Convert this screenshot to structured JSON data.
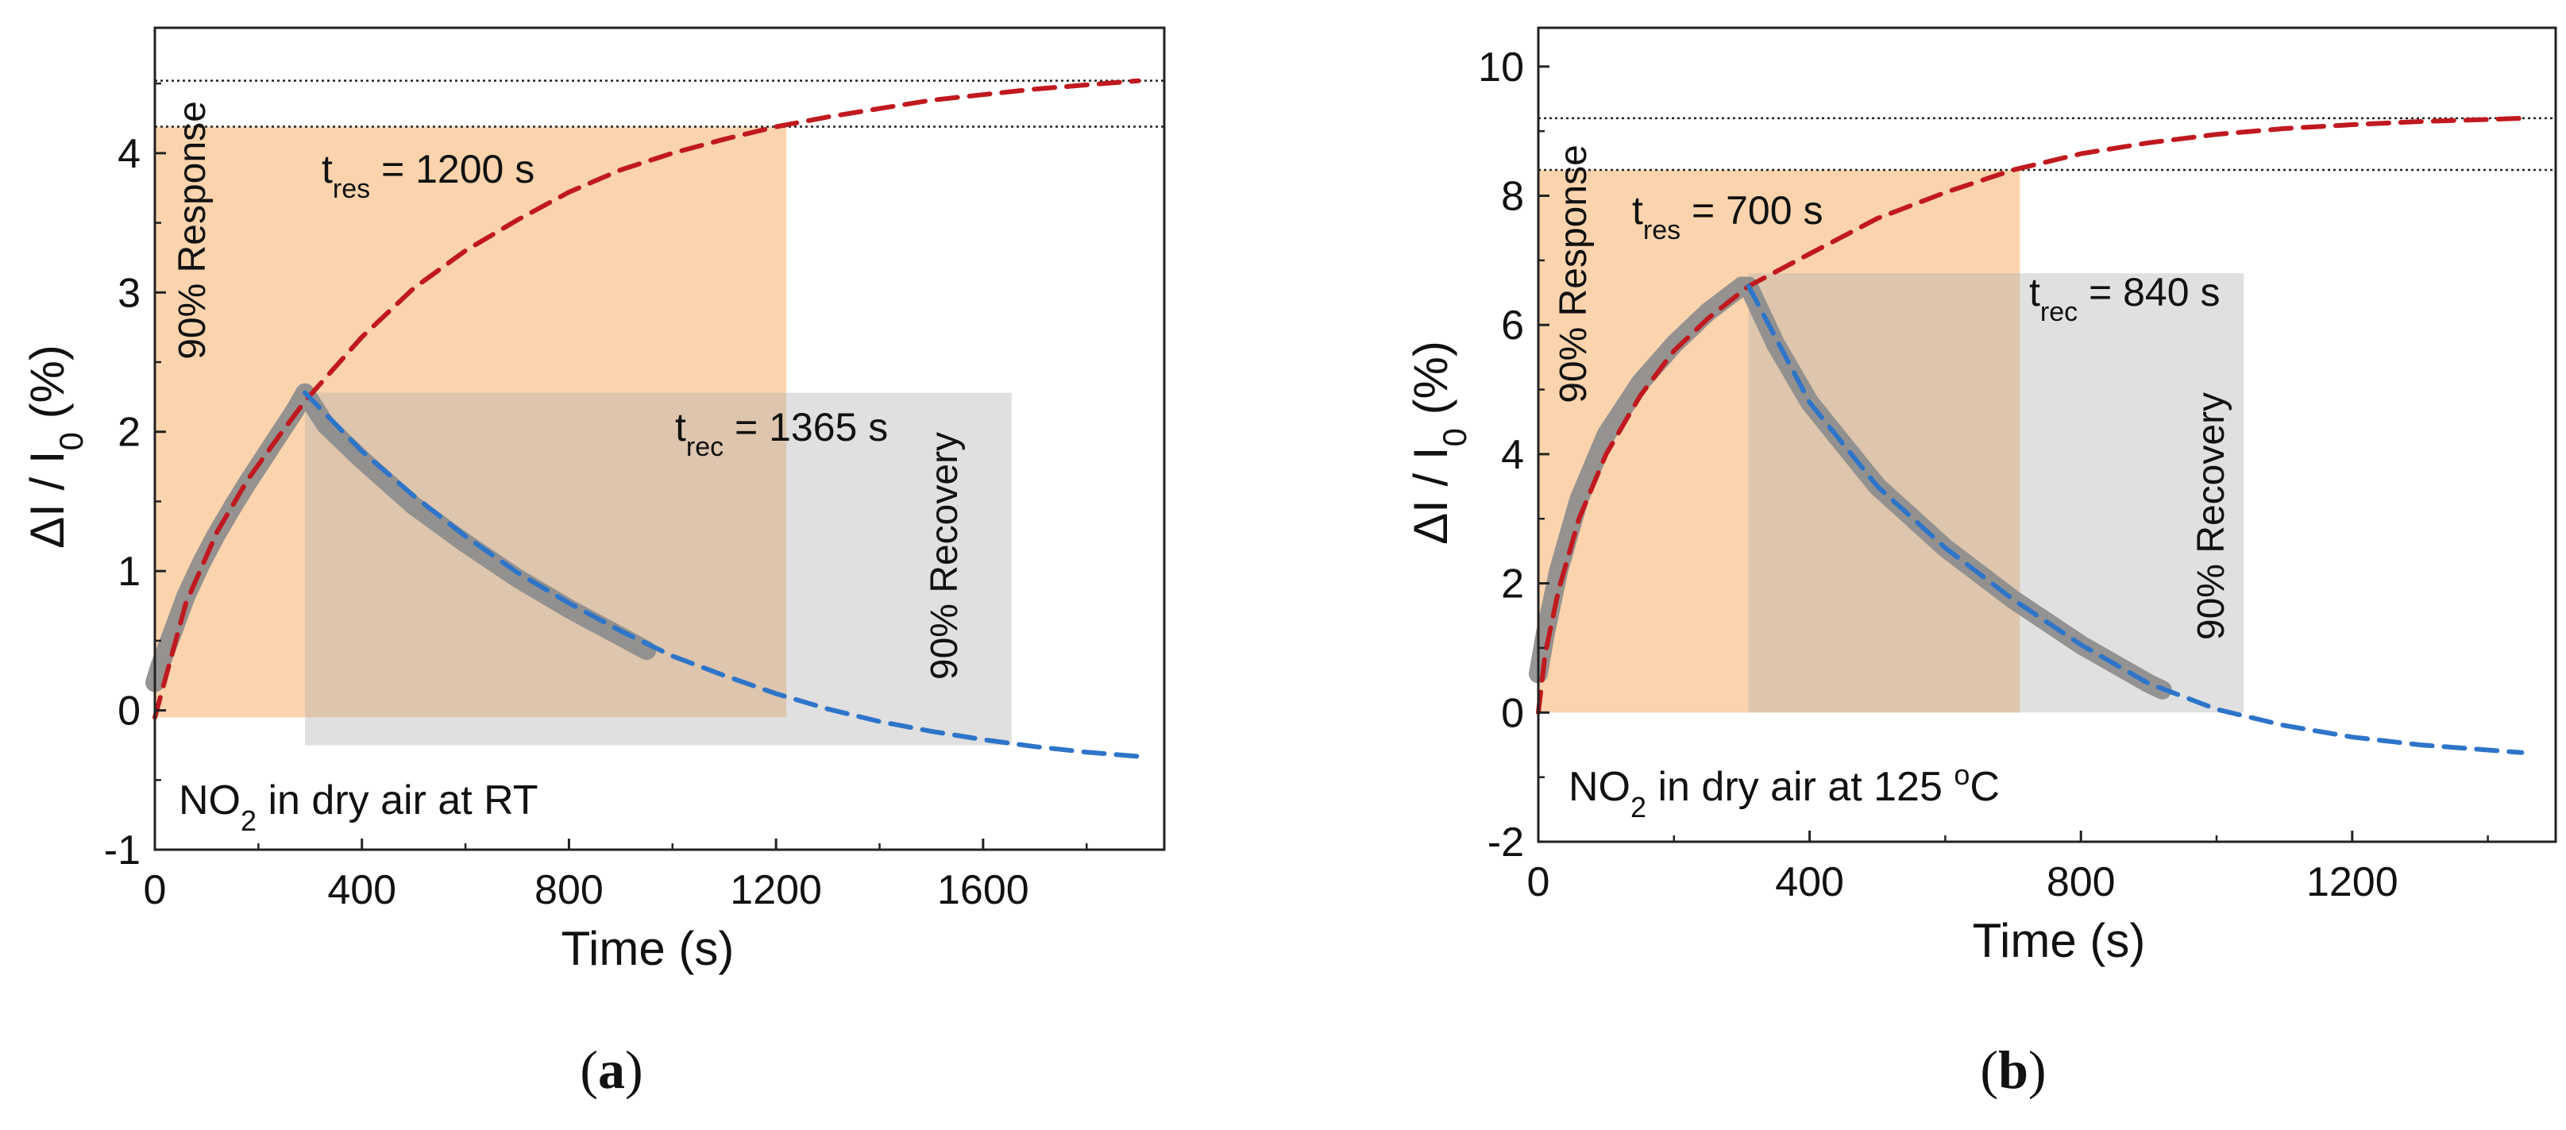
{
  "chart_data": [
    {
      "panel_label": "a",
      "type": "line",
      "xlabel": "Time (s)",
      "ylabel_parts": [
        "ΔI / I",
        "0",
        "  (%)"
      ],
      "xlim": [
        0,
        1950
      ],
      "ylim": [
        -1,
        4.9
      ],
      "xticks": [
        0,
        400,
        800,
        1200,
        1600
      ],
      "xtick_labels": [
        "0",
        "400",
        "800",
        "1200",
        "1600"
      ],
      "yticks": [
        -1,
        0,
        1,
        2,
        3,
        4
      ],
      "ytick_labels": [
        "-1",
        "0",
        "1",
        "2",
        "3",
        "4"
      ],
      "annotation": {
        "parts": [
          "NO",
          "2",
          " in dry air at RT"
        ]
      },
      "response_label": "90% Response",
      "recovery_label": "90% Recovery",
      "t_res_label": {
        "parts": [
          "t",
          "res",
          " = 1200 s"
        ]
      },
      "t_rec_label": {
        "parts": [
          "t",
          "rec",
          " = 1365 s"
        ]
      },
      "reference_lines": [
        4.52,
        4.19
      ],
      "response_region": {
        "x": [
          0,
          1220
        ],
        "y": [
          -0.05,
          4.19
        ]
      },
      "recovery_region": {
        "x": [
          290,
          1655
        ],
        "y": [
          -0.25,
          2.28
        ]
      },
      "series": [
        {
          "name": "measured",
          "color": "#8c8c8c",
          "x": [
            0,
            10,
            30,
            60,
            90,
            120,
            150,
            180,
            210,
            240,
            270,
            290,
            330,
            400,
            500,
            600,
            700,
            800,
            900,
            950
          ],
          "y": [
            0.2,
            0.32,
            0.52,
            0.82,
            1.06,
            1.27,
            1.46,
            1.64,
            1.81,
            1.98,
            2.15,
            2.28,
            2.05,
            1.8,
            1.47,
            1.2,
            0.95,
            0.73,
            0.53,
            0.43
          ]
        },
        {
          "name": "response fit",
          "color": "#c0191f",
          "x": [
            0,
            60,
            120,
            180,
            240,
            290,
            400,
            500,
            600,
            700,
            800,
            900,
            1000,
            1100,
            1200,
            1300,
            1400,
            1500,
            1600,
            1700,
            1800,
            1900
          ],
          "y": [
            -0.05,
            0.77,
            1.28,
            1.66,
            1.97,
            2.22,
            2.68,
            3.03,
            3.3,
            3.52,
            3.72,
            3.88,
            4.0,
            4.1,
            4.19,
            4.26,
            4.32,
            4.38,
            4.42,
            4.46,
            4.49,
            4.52
          ]
        },
        {
          "name": "recovery fit",
          "color": "#2e75c9",
          "x": [
            290,
            400,
            500,
            600,
            700,
            800,
            900,
            1000,
            1100,
            1200,
            1300,
            1400,
            1500,
            1600,
            1700,
            1800,
            1900
          ],
          "y": [
            2.28,
            1.86,
            1.54,
            1.25,
            0.99,
            0.77,
            0.57,
            0.39,
            0.25,
            0.12,
            0.01,
            -0.08,
            -0.15,
            -0.21,
            -0.26,
            -0.3,
            -0.33
          ]
        }
      ]
    },
    {
      "panel_label": "b",
      "type": "line",
      "xlabel": "Time (s)",
      "ylabel_parts": [
        "ΔI / I",
        "0",
        "  (%)"
      ],
      "xlim": [
        0,
        1500
      ],
      "ylim": [
        -2,
        10.6
      ],
      "xticks": [
        0,
        400,
        800,
        1200
      ],
      "xtick_labels": [
        "0",
        "400",
        "800",
        "1200"
      ],
      "yticks": [
        -2,
        0,
        2,
        4,
        6,
        8,
        10
      ],
      "ytick_labels": [
        "-2",
        "0",
        "2",
        "4",
        "6",
        "8",
        "10"
      ],
      "annotation": {
        "parts": [
          "NO",
          "2",
          " in dry air at 125 ",
          "o",
          "C"
        ]
      },
      "response_label": "90% Response",
      "recovery_label": "90% Recovery",
      "t_res_label": {
        "parts": [
          "t",
          "res",
          " = 700 s"
        ]
      },
      "t_rec_label": {
        "parts": [
          "t",
          "rec",
          " = 840 s"
        ]
      },
      "reference_lines": [
        9.2,
        8.4
      ],
      "response_region": {
        "x": [
          0,
          710
        ],
        "y": [
          0,
          8.4
        ]
      },
      "recovery_region": {
        "x": [
          310,
          1040
        ],
        "y": [
          0,
          6.8
        ]
      },
      "series": [
        {
          "name": "measured",
          "color": "#8c8c8c",
          "x": [
            0,
            10,
            30,
            60,
            100,
            150,
            200,
            250,
            300,
            310,
            350,
            400,
            500,
            600,
            700,
            800,
            900,
            920
          ],
          "y": [
            0.6,
            1.2,
            2.2,
            3.3,
            4.3,
            5.1,
            5.7,
            6.2,
            6.6,
            6.6,
            5.7,
            4.8,
            3.5,
            2.55,
            1.75,
            1.05,
            0.45,
            0.35
          ]
        },
        {
          "name": "response fit",
          "color": "#c0191f",
          "x": [
            0,
            10,
            30,
            60,
            100,
            150,
            200,
            250,
            310,
            400,
            500,
            600,
            700,
            800,
            900,
            1000,
            1100,
            1200,
            1300,
            1400,
            1450
          ],
          "y": [
            0,
            0.9,
            1.9,
            3.0,
            4.0,
            4.9,
            5.6,
            6.1,
            6.6,
            7.1,
            7.65,
            8.05,
            8.4,
            8.65,
            8.82,
            8.95,
            9.04,
            9.1,
            9.15,
            9.18,
            9.2
          ]
        },
        {
          "name": "recovery fit",
          "color": "#2e75c9",
          "x": [
            310,
            400,
            500,
            600,
            700,
            800,
            900,
            1000,
            1100,
            1200,
            1300,
            1400,
            1450
          ],
          "y": [
            6.6,
            4.8,
            3.5,
            2.55,
            1.75,
            1.05,
            0.45,
            0.05,
            -0.2,
            -0.38,
            -0.5,
            -0.58,
            -0.62
          ]
        }
      ]
    }
  ]
}
